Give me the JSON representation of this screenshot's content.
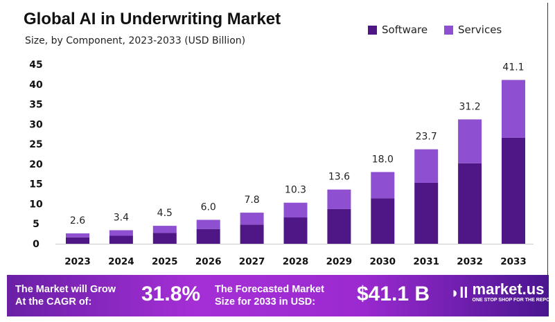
{
  "chart_data": {
    "type": "bar",
    "stacked": true,
    "title": "Global AI in Underwriting Market",
    "subtitle": "Size, by Component, 2023-2033 (USD Billion)",
    "categories": [
      "2023",
      "2024",
      "2025",
      "2026",
      "2027",
      "2028",
      "2029",
      "2030",
      "2031",
      "2032",
      "2033"
    ],
    "series": [
      {
        "name": "Software",
        "color": "#4f1785",
        "values": [
          1.6,
          2.0,
          2.7,
          3.7,
          4.8,
          6.6,
          8.7,
          11.4,
          15.3,
          20.2,
          26.6
        ]
      },
      {
        "name": "Services",
        "color": "#8e4fd0",
        "values": [
          1.0,
          1.4,
          1.8,
          2.3,
          3.0,
          3.7,
          4.9,
          6.6,
          8.4,
          11.0,
          14.5
        ]
      }
    ],
    "totals": [
      "2.6",
      "3.4",
      "4.5",
      "6.0",
      "7.8",
      "10.3",
      "13.6",
      "18.0",
      "23.7",
      "31.2",
      "41.1"
    ],
    "ylim": [
      0,
      45
    ],
    "yticks": [
      "0",
      "5",
      "10",
      "15",
      "20",
      "25",
      "30",
      "35",
      "40",
      "45"
    ],
    "grid": false,
    "legend_position": "top-right"
  },
  "footer": {
    "cagr_label_1": "The Market will Grow",
    "cagr_label_2": "At the CAGR of:",
    "cagr_value": "31.8%",
    "forecast_label_1": "The Forecasted Market",
    "forecast_label_2": "Size for 2033 in USD:",
    "forecast_value": "$41.1 B",
    "logo_name": "market.us",
    "logo_tagline": "ONE STOP SHOP FOR THE REPORTS"
  }
}
